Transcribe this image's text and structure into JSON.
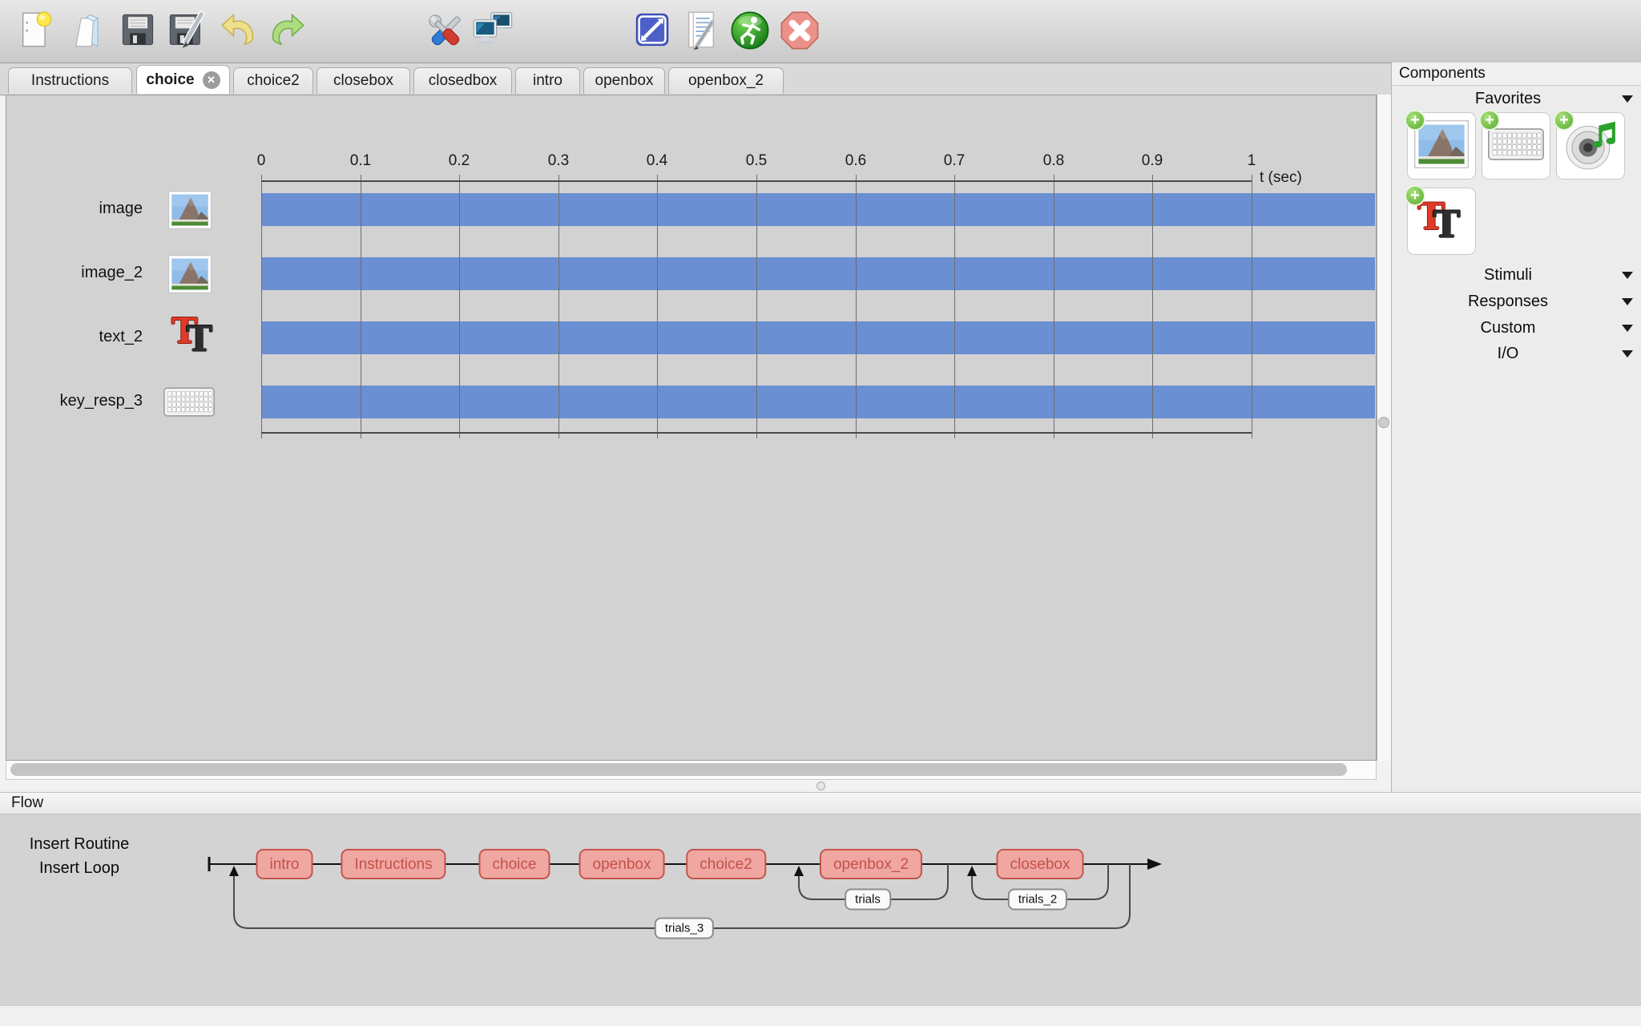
{
  "toolbar": {
    "icons": [
      "new-file",
      "open-file",
      "save",
      "save-as",
      "undo",
      "redo",
      "tools",
      "monitor-center",
      "experiment-settings",
      "compile-script",
      "run",
      "stop"
    ]
  },
  "tabs": {
    "active_index": 1,
    "items": [
      {
        "label": "Instructions",
        "closable": false
      },
      {
        "label": "choice",
        "closable": true
      },
      {
        "label": "choice2",
        "closable": false
      },
      {
        "label": "closebox",
        "closable": false
      },
      {
        "label": "closedbox",
        "closable": false
      },
      {
        "label": "intro",
        "closable": false
      },
      {
        "label": "openbox",
        "closable": false
      },
      {
        "label": "openbox_2",
        "closable": false
      }
    ]
  },
  "routine_panel": {
    "axis": {
      "ticks": [
        "0",
        "0.1",
        "0.2",
        "0.3",
        "0.4",
        "0.5",
        "0.6",
        "0.7",
        "0.8",
        "0.9",
        "1"
      ],
      "unit_label": "t (sec)"
    },
    "rows": [
      {
        "label": "image",
        "icon": "image-thumbnail",
        "bar_start_sec": 0,
        "bar_extends_past_axis": true
      },
      {
        "label": "image_2",
        "icon": "image-thumbnail",
        "bar_start_sec": 0,
        "bar_extends_past_axis": true
      },
      {
        "label": "text_2",
        "icon": "text-component",
        "bar_start_sec": 0,
        "bar_extends_past_axis": true
      },
      {
        "label": "key_resp_3",
        "icon": "keyboard-component",
        "bar_start_sec": 0,
        "bar_extends_past_axis": true
      }
    ]
  },
  "components_panel": {
    "title": "Components",
    "favorites": {
      "label": "Favorites",
      "items": [
        {
          "name": "image-component",
          "icon": "image-icon"
        },
        {
          "name": "keyboard-component",
          "icon": "keyboard-icon"
        },
        {
          "name": "sound-component",
          "icon": "speaker-icon"
        },
        {
          "name": "text-component",
          "icon": "text-icon"
        }
      ]
    },
    "sections": [
      {
        "label": "Stimuli"
      },
      {
        "label": "Responses"
      },
      {
        "label": "Custom"
      },
      {
        "label": "I/O"
      }
    ]
  },
  "flow_panel": {
    "title": "Flow",
    "buttons": {
      "insert_routine": "Insert Routine",
      "insert_loop": "Insert Loop"
    },
    "routines": [
      "intro",
      "Instructions",
      "choice",
      "openbox",
      "choice2",
      "openbox_2",
      "closebox"
    ],
    "loops": [
      "trials",
      "trials_2",
      "trials_3"
    ]
  },
  "colors": {
    "bar_blue": "#6A8FD2",
    "canvas_bg": "#D2D2D2",
    "routine_fill": "#F0A7A1",
    "routine_border": "#C5554C",
    "routine_text": "#C4514B",
    "panel_bg": "#ECECEC"
  }
}
